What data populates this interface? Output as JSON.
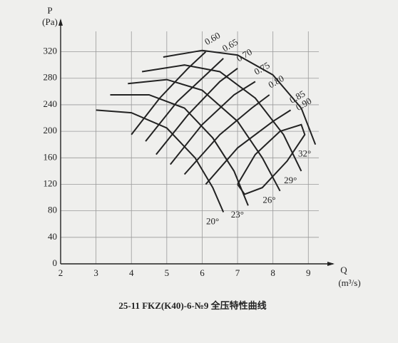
{
  "chart_data": {
    "type": "line",
    "caption": "25-11   FKZ(K40)-6-№9   全压特性曲线",
    "y_label": "P",
    "y_unit": "(Pa)",
    "x_label": "Q",
    "x_unit": "(m³/s)",
    "xlim": [
      2,
      9.7
    ],
    "ylim": [
      0,
      340
    ],
    "xticks": [
      2,
      3,
      4,
      5,
      6,
      7,
      8,
      9
    ],
    "yticks": [
      0,
      40,
      80,
      120,
      160,
      200,
      240,
      280,
      320
    ],
    "grid": true,
    "series": [
      {
        "name": "20°",
        "color": "#222",
        "x": [
          3.0,
          4.0,
          5.0,
          5.8,
          6.3,
          6.6
        ],
        "values": [
          232,
          228,
          205,
          160,
          115,
          78
        ]
      },
      {
        "name": "23°",
        "color": "#222",
        "x": [
          3.4,
          4.5,
          5.5,
          6.3,
          6.9,
          7.3
        ],
        "values": [
          255,
          255,
          235,
          190,
          140,
          88
        ]
      },
      {
        "name": "26°",
        "color": "#222",
        "x": [
          3.9,
          5.0,
          6.0,
          7.0,
          7.7,
          8.2
        ],
        "values": [
          272,
          278,
          262,
          215,
          160,
          110
        ]
      },
      {
        "name": "29°",
        "color": "#222",
        "x": [
          4.3,
          5.5,
          6.5,
          7.5,
          8.3,
          8.8
        ],
        "values": [
          290,
          300,
          290,
          250,
          195,
          140
        ]
      },
      {
        "name": "32°",
        "color": "#222",
        "x": [
          4.9,
          6.0,
          7.0,
          8.0,
          8.8,
          9.2
        ],
        "values": [
          312,
          322,
          315,
          285,
          235,
          180
        ]
      },
      {
        "name": "0.60",
        "color": "#222",
        "x": [
          4.0,
          4.8,
          5.6,
          6.1
        ],
        "values": [
          195,
          250,
          295,
          320
        ]
      },
      {
        "name": "0.65",
        "color": "#222",
        "x": [
          4.4,
          5.3,
          6.2,
          6.6
        ],
        "values": [
          185,
          245,
          290,
          310
        ]
      },
      {
        "name": "0.70",
        "color": "#222",
        "x": [
          4.7,
          5.6,
          6.5,
          7.0
        ],
        "values": [
          165,
          225,
          275,
          295
        ]
      },
      {
        "name": "0.75",
        "color": "#222",
        "x": [
          5.1,
          6.0,
          6.9,
          7.5
        ],
        "values": [
          150,
          210,
          255,
          275
        ]
      },
      {
        "name": "0.80",
        "color": "#222",
        "x": [
          5.5,
          6.5,
          7.4,
          7.9
        ],
        "values": [
          135,
          195,
          235,
          255
        ]
      },
      {
        "name": "0.85",
        "color": "#222",
        "x": [
          6.1,
          7.0,
          8.0,
          8.5
        ],
        "values": [
          120,
          175,
          215,
          232
        ]
      },
      {
        "name": "0.90",
        "color": "#222",
        "x": [
          7.0,
          7.5,
          8.2,
          8.8,
          8.9,
          8.4,
          7.7,
          7.2,
          7.0
        ],
        "values": [
          120,
          165,
          200,
          210,
          195,
          155,
          115,
          105,
          120
        ]
      }
    ]
  }
}
